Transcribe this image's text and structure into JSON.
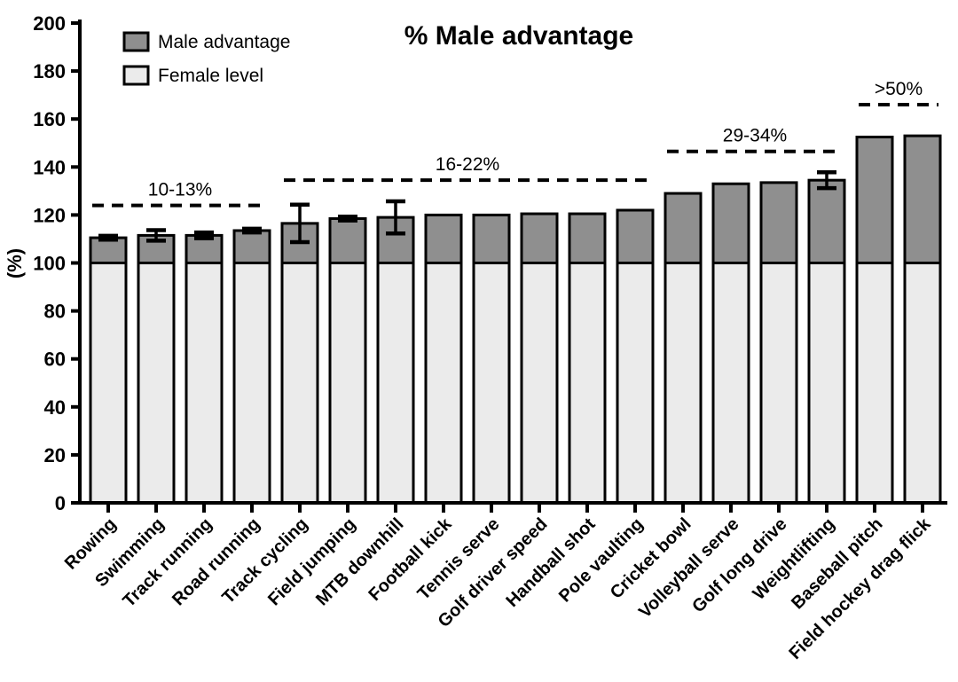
{
  "figure": {
    "background": "#ffffff"
  },
  "legend": {
    "items": [
      {
        "label": "Male advantage",
        "color": "#8f8f8f"
      },
      {
        "label": "Female level",
        "color": "#ebebeb"
      }
    ]
  },
  "chart_data": {
    "type": "bar",
    "stacked": true,
    "title": "% Male advantage",
    "xlabel": "",
    "ylabel": "(%)",
    "ylim": [
      0,
      200
    ],
    "yticks": [
      0,
      20,
      40,
      60,
      80,
      100,
      120,
      140,
      160,
      180,
      200
    ],
    "grid": false,
    "legend_position": "top-left-inside",
    "bar_outline_color": "#000000",
    "categories": [
      "Rowing",
      "Swimming",
      "Track running",
      "Road running",
      "Track cycling",
      "Field jumping",
      "MTB downhill",
      "Football kick",
      "Tennis serve",
      "Golf driver speed",
      "Handball shot",
      "Pole vaulting",
      "Cricket bowl",
      "Volleyball serve",
      "Golf long drive",
      "Weightlifting",
      "Baseball pitch",
      "Field hockey drag flick"
    ],
    "series": [
      {
        "name": "Female level",
        "color": "#ebebeb",
        "values": [
          100,
          100,
          100,
          100,
          100,
          100,
          100,
          100,
          100,
          100,
          100,
          100,
          100,
          100,
          100,
          100,
          100,
          100
        ]
      },
      {
        "name": "Male advantage",
        "color": "#8f8f8f",
        "values": [
          10.5,
          11.5,
          11.5,
          13.5,
          16.5,
          18.5,
          19,
          20,
          20,
          20.5,
          20.5,
          22,
          29,
          33,
          33.5,
          34.5,
          52.5,
          53
        ]
      }
    ],
    "totals": [
      110.5,
      111.5,
      111.5,
      113.5,
      116.5,
      118.5,
      119,
      120,
      120,
      120.5,
      120.5,
      122,
      129,
      133,
      133.5,
      134.5,
      152.5,
      153
    ],
    "error_bars": [
      0.8,
      2.2,
      1.2,
      0.8,
      7.8,
      0.8,
      6.7,
      0,
      0,
      0,
      0,
      0,
      0,
      0,
      0,
      3.3,
      0,
      0
    ],
    "annotations": [
      {
        "label": "10-13%",
        "from_category": 0,
        "to_category": 3,
        "line_value": 124
      },
      {
        "label": "16-22%",
        "from_category": 4,
        "to_category": 11,
        "line_value": 134.5
      },
      {
        "label": "29-34%",
        "from_category": 12,
        "to_category": 15,
        "line_value": 146.5
      },
      {
        "label": ">50%",
        "from_category": 16,
        "to_category": 17,
        "line_value": 166
      }
    ]
  }
}
